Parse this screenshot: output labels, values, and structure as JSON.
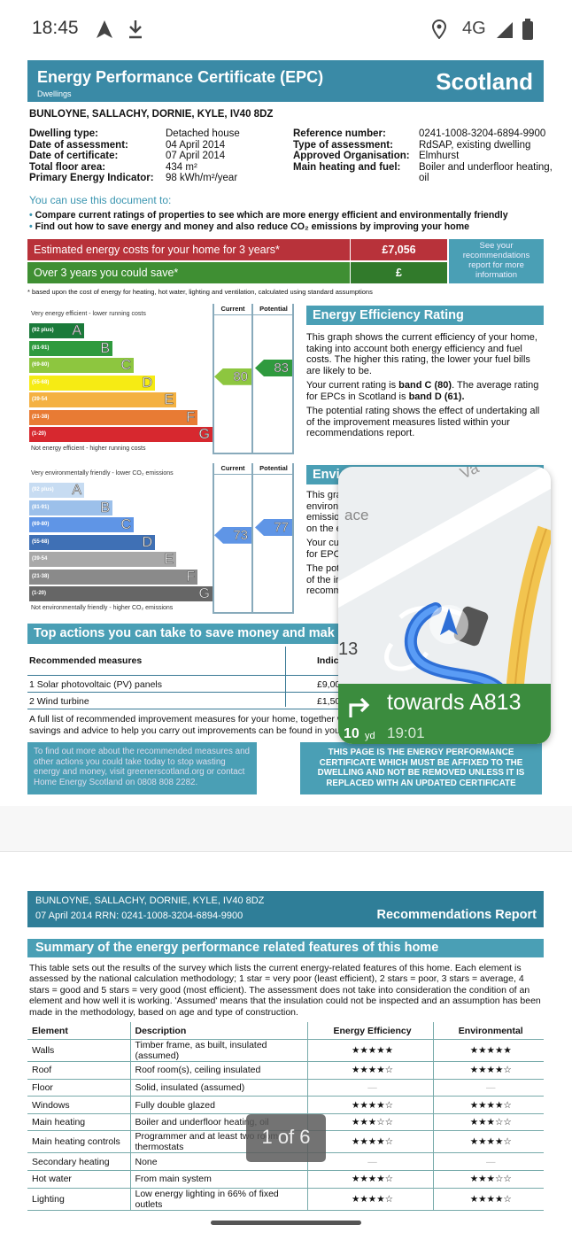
{
  "status_bar": {
    "time": "18:45",
    "network": "4G",
    "icons": [
      "navigation-arrow-icon",
      "download-icon",
      "location-icon",
      "signal-icon",
      "battery-icon"
    ]
  },
  "epc": {
    "title": "Energy Performance Certificate (EPC)",
    "subtitle": "Dwellings",
    "region": "Scotland",
    "address": "BUNLOYNE, SALLACHY, DORNIE, KYLE, IV40 8DZ",
    "left_info": [
      [
        "Dwelling type:",
        "Detached house"
      ],
      [
        "Date of assessment:",
        "04 April 2014"
      ],
      [
        "Date of certificate:",
        "07 April 2014"
      ],
      [
        "Total floor area:",
        "434 m²"
      ],
      [
        "Primary Energy Indicator:",
        "98 kWh/m²/year"
      ]
    ],
    "right_info": [
      [
        "Reference number:",
        "0241-1008-3204-6894-9900"
      ],
      [
        "Type of assessment:",
        "RdSAP, existing dwelling"
      ],
      [
        "Approved Organisation:",
        "Elmhurst"
      ],
      [
        "Main heating and fuel:",
        "Boiler and underfloor heating, oil"
      ]
    ],
    "use_title": "You can use this document to:",
    "bullets": [
      "Compare current ratings of properties to see which are more energy efficient and environmentally friendly",
      "Find out how to save energy and money and also reduce CO₂ emissions by improving your home"
    ],
    "costs_label": "Estimated energy costs for your home for 3 years*",
    "costs_value": "£7,056",
    "save_label": "Over 3 years you could save*",
    "save_value": "£",
    "see_recs": "See your recommendations report for more information",
    "footnote": "* based upon the cost of energy for heating, hot water, lighting and ventilation, calculated using standard assumptions",
    "col_current": "Current",
    "col_potential": "Potential",
    "ee": {
      "top": "Very energy efficient - lower running costs",
      "bottom": "Not energy efficient - higher running costs",
      "current": "80",
      "potential": "83",
      "bands": [
        {
          "range": "(92 plus)",
          "letter": "A",
          "color": "#1a7a3a"
        },
        {
          "range": "(81-91)",
          "letter": "B",
          "color": "#2f9a3e"
        },
        {
          "range": "(69-80)",
          "letter": "C",
          "color": "#8dc63f"
        },
        {
          "range": "(55-68)",
          "letter": "D",
          "color": "#f6eb14"
        },
        {
          "range": "(39-54",
          "letter": "E",
          "color": "#f4b142"
        },
        {
          "range": "(21-38)",
          "letter": "F",
          "color": "#e87b34"
        },
        {
          "range": "(1-20)",
          "letter": "G",
          "color": "#d7282f"
        }
      ],
      "heading": "Energy Efficiency Rating",
      "p1": "This graph shows the current efficiency of your home, taking into account both energy efficiency and fuel costs. The higher this rating, the lower your fuel bills are likely to be.",
      "p2a": "Your current rating is ",
      "p2b": "band C (80)",
      "p2c": ". The average rating for EPCs in Scotland is ",
      "p2d": "band D (61).",
      "p3": "The potential rating shows the effect of undertaking all of the improvement measures listed within your recommendations report."
    },
    "ei": {
      "top": "Very environmentally friendly - lower CO₂ emissions",
      "bottom": "Not environmentally friendly - higher CO₂ emissions",
      "current": "73",
      "potential": "77",
      "bands": [
        {
          "range": "(92 plus)",
          "letter": "A",
          "color": "#c7dcf2"
        },
        {
          "range": "(81-91)",
          "letter": "B",
          "color": "#9cc0ea"
        },
        {
          "range": "(69-80)",
          "letter": "C",
          "color": "#5f95e6"
        },
        {
          "range": "(55-68)",
          "letter": "D",
          "color": "#3f70b5"
        },
        {
          "range": "(39-54",
          "letter": "E",
          "color": "#a8a8a8"
        },
        {
          "range": "(21-38)",
          "letter": "F",
          "color": "#8a8a8a"
        },
        {
          "range": "(1-20)",
          "letter": "G",
          "color": "#666666"
        }
      ],
      "heading": "Envi",
      "lines": [
        "This gra",
        "environ",
        "emissio",
        "on the e",
        "Your cu",
        "for EPC",
        "The pot",
        "of the ir",
        "recomm"
      ]
    },
    "actions_title": "Top actions you can take to save money and mak",
    "actions_header": [
      "Recommended measures",
      "Indic"
    ],
    "actions": [
      [
        "1 Solar photovoltaic (PV) panels",
        "£9,00"
      ],
      [
        "2 Wind turbine",
        "£1,50"
      ]
    ],
    "full_list": [
      "A full list of recommended improvement measures for your home, together w",
      "savings and advice to help you carry out improvements can be found in your"
    ],
    "find_out": "To find out more about the recommended measures and other actions you could take today to stop wasting energy and money, visit greenerscotland.org or contact Home Energy Scotland on 0808 808 2282.",
    "affix": "THIS PAGE IS THE ENERGY PERFORMANCE CERTIFICATE WHICH MUST BE AFFIXED TO THE DWELLING AND NOT BE REMOVED UNLESS IT IS REPLACED WITH AN UPDATED CERTIFICATE"
  },
  "nav": {
    "direction": "towards A813",
    "distance": "10",
    "unit": "yd",
    "eta": "19:01",
    "road_number": "13",
    "map_labels": [
      "Va",
      "ace"
    ]
  },
  "rec": {
    "address": "BUNLOYNE, SALLACHY, DORNIE, KYLE, IV40 8DZ",
    "date_rrn": "07 April 2014 RRN: 0241-1008-3204-6894-9900",
    "title": "Recommendations Report",
    "summary_title": "Summary of the energy performance related features of this home",
    "summary_text": "This table sets out the results of the survey which lists the current energy-related features of this home. Each element is assessed by the national calculation methodology; 1 star = very poor (least efficient), 2 stars = poor, 3 stars = average, 4 stars = good and 5 stars = very good (most efficient). The assessment does not take into consideration the condition of an element and how well it is working. 'Assumed' means that the insulation could not be inspected and an assumption has been made in the methodology, based on age and type of construction.",
    "headers": [
      "Element",
      "Description",
      "Energy Efficiency",
      "Environmental"
    ],
    "rows": [
      [
        "Walls",
        "Timber frame, as built, insulated (assumed)",
        "★★★★★",
        "★★★★★"
      ],
      [
        "Roof",
        "Roof room(s), ceiling insulated",
        "★★★★☆",
        "★★★★☆"
      ],
      [
        "Floor",
        "Solid, insulated (assumed)",
        "—",
        "—"
      ],
      [
        "Windows",
        "Fully double glazed",
        "★★★★☆",
        "★★★★☆"
      ],
      [
        "Main heating",
        "Boiler and underfloor heating, oil",
        "★★★☆☆",
        "★★★☆☆"
      ],
      [
        "Main heating controls",
        "Programmer and at least two room thermostats",
        "★★★★☆",
        "★★★★☆"
      ],
      [
        "Secondary heating",
        "None",
        "—",
        "—"
      ],
      [
        "Hot water",
        "From main system",
        "★★★★☆",
        "★★★☆☆"
      ],
      [
        "Lighting",
        "Low energy lighting in 66% of fixed outlets",
        "★★★★☆",
        "★★★★☆"
      ]
    ]
  },
  "page_indicator": "1 of 6"
}
